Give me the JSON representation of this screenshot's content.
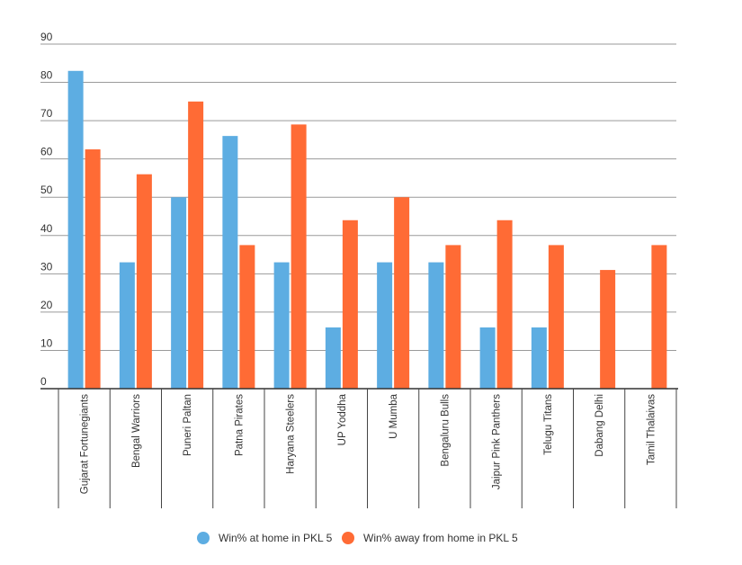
{
  "chart_data": {
    "type": "bar",
    "title": "",
    "xlabel": "",
    "ylabel": "",
    "ylim": [
      0,
      90
    ],
    "yticks": [
      0,
      10,
      20,
      30,
      40,
      50,
      60,
      70,
      80,
      90
    ],
    "grid": true,
    "legend_position": "bottom",
    "categories": [
      "Gujarat Fortunegiants",
      "Bengal Warriors",
      "Puneri Paltan",
      "Patna Pirates",
      "Haryana Steelers",
      "UP Yoddha",
      "U Mumba",
      "Bengaluru Bulls",
      "Jaipur Pink Panthers",
      "Telugu Titans",
      "Dabang Delhi",
      "Tamil Thalaivas"
    ],
    "series": [
      {
        "name": "Win% at home in PKL 5",
        "color": "#5dade2",
        "values": [
          83,
          33,
          50,
          66,
          33,
          16,
          33,
          33,
          16,
          16,
          null,
          null
        ]
      },
      {
        "name": "Win% away from home in PKL 5",
        "color": "#ff6b35",
        "values": [
          62.5,
          56,
          75,
          37.5,
          69,
          44,
          50,
          37.5,
          44,
          37.5,
          31,
          37.5
        ]
      }
    ]
  }
}
